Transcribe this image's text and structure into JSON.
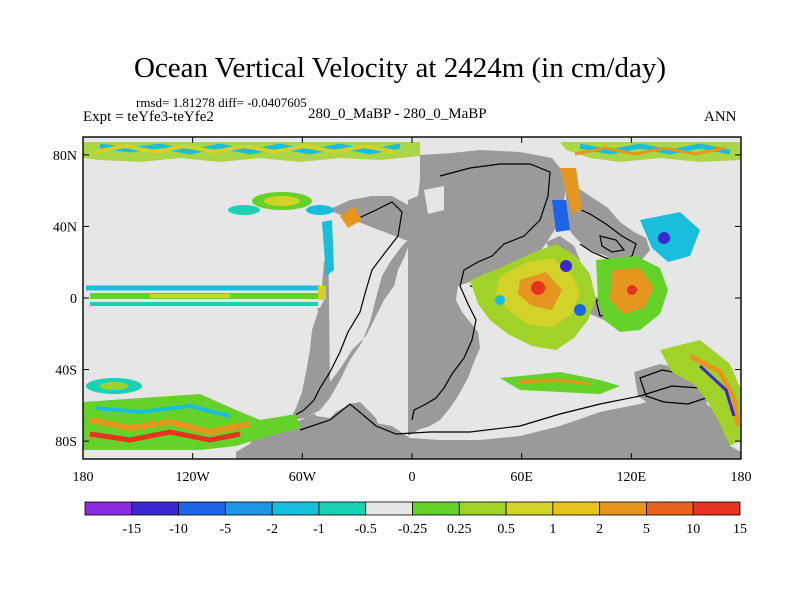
{
  "title": "Ocean Vertical Velocity at 2424m (in cm/day)",
  "stats": "rmsd= 1.81278 diff= -0.0407605",
  "experiment": "Expt = teYfe3-teYfe2",
  "case_label": "280_0_MaBP - 280_0_MaBP",
  "season": "ANN",
  "map": {
    "projection": "cylindrical equidistant",
    "lon_range": [
      -180,
      180
    ],
    "lat_range": [
      -90,
      90
    ],
    "land_color": "#9a9a9a",
    "near_zero_color": "#e6e6e6",
    "lat_ticks": [
      {
        "label": "80N",
        "lat": 80
      },
      {
        "label": "40N",
        "lat": 40
      },
      {
        "label": "0",
        "lat": 0
      },
      {
        "label": "40S",
        "lat": -40
      },
      {
        "label": "80S",
        "lat": -80
      }
    ],
    "lon_ticks": [
      {
        "label": "180",
        "lon": -180
      },
      {
        "label": "120W",
        "lon": -120
      },
      {
        "label": "60W",
        "lon": -60
      },
      {
        "label": "0",
        "lon": 0
      },
      {
        "label": "60E",
        "lon": 60
      },
      {
        "label": "120E",
        "lon": 120
      },
      {
        "label": "180",
        "lon": 180
      }
    ]
  },
  "colorbar": {
    "colors": [
      "#8a2be2",
      "#3c28d2",
      "#1e64e6",
      "#1e96e6",
      "#19bedc",
      "#19d2b4",
      "#e6e6e6",
      "#64d228",
      "#a0d228",
      "#d2d228",
      "#e6c31e",
      "#e6961e",
      "#e6641e",
      "#e6321e"
    ],
    "labels": [
      "-15",
      "-10",
      "-5",
      "-2",
      "-1",
      "-0.5",
      "-0.25",
      "0.25",
      "0.5",
      "1",
      "2",
      "5",
      "10",
      "15"
    ]
  }
}
